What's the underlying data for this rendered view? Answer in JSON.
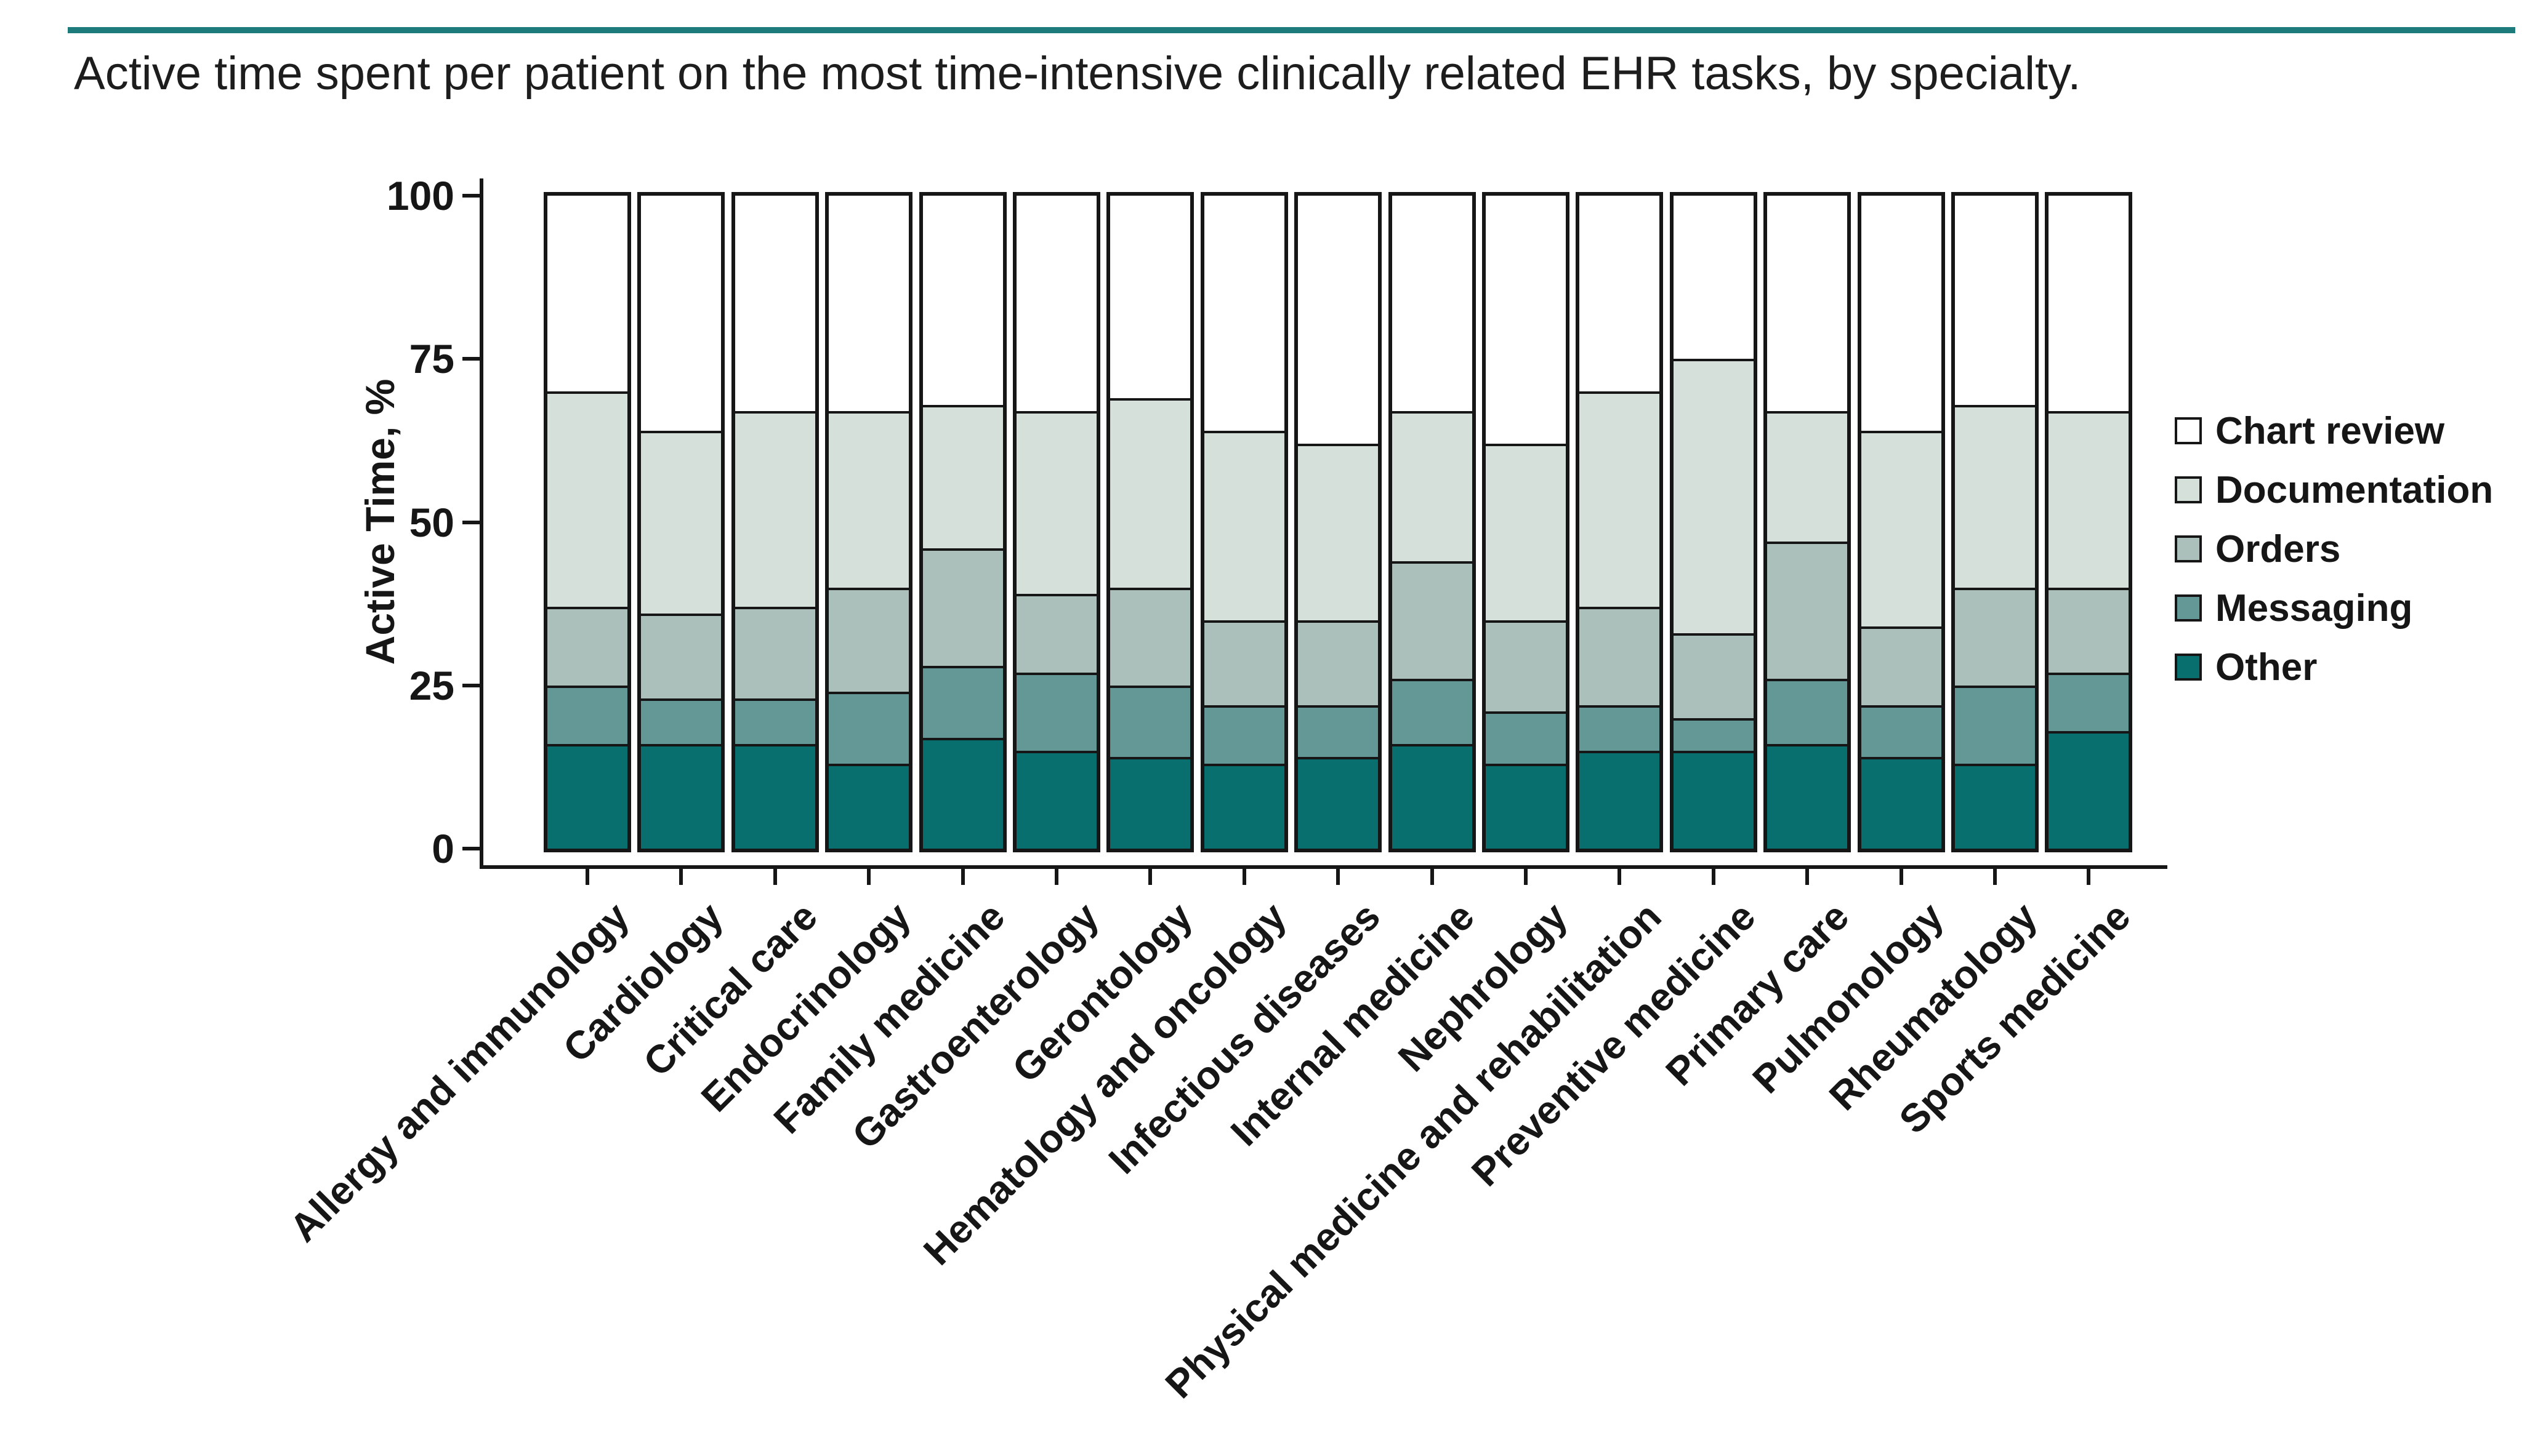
{
  "page": {
    "top_rule_color": "#1e7b7c"
  },
  "chart_data": {
    "type": "bar",
    "stacked": true,
    "title": "Active time spent per patient on the most time-intensive clinically related EHR tasks, by specialty.",
    "xlabel": "",
    "ylabel": "Active Time, %",
    "ylim": [
      0,
      100
    ],
    "yticks": [
      0,
      25,
      50,
      75,
      100
    ],
    "grid": false,
    "legend_position": "right",
    "legend_order": [
      "Chart review",
      "Documentation",
      "Orders",
      "Messaging",
      "Other"
    ],
    "categories": [
      "Allergy and immunology",
      "Cardiology",
      "Critical care",
      "Endocrinology",
      "Family medicine",
      "Gastroenterology",
      "Gerontology",
      "Hematology and oncology",
      "Infectious diseases",
      "Internal medicine",
      "Nephrology",
      "Physical medicine and rehabilitation",
      "Preventive medicine",
      "Primary care",
      "Pulmonology",
      "Rheumatology",
      "Sports medicine"
    ],
    "series": [
      {
        "name": "Other",
        "color": "#086e6e",
        "values": [
          16,
          16,
          16,
          13,
          17,
          15,
          14,
          13,
          14,
          16,
          13,
          15,
          15,
          16,
          14,
          13,
          18
        ]
      },
      {
        "name": "Messaging",
        "color": "#649896",
        "values": [
          9,
          7,
          7,
          11,
          11,
          12,
          11,
          9,
          8,
          10,
          8,
          7,
          5,
          10,
          8,
          12,
          9
        ]
      },
      {
        "name": "Orders",
        "color": "#abc0ba",
        "values": [
          12,
          13,
          14,
          16,
          18,
          12,
          15,
          13,
          13,
          18,
          14,
          15,
          13,
          21,
          12,
          15,
          13
        ]
      },
      {
        "name": "Documentation",
        "color": "#d5e0db",
        "values": [
          33,
          28,
          30,
          27,
          22,
          28,
          29,
          29,
          27,
          23,
          27,
          33,
          42,
          20,
          30,
          28,
          27
        ]
      },
      {
        "name": "Chart review",
        "color": "#ffffff",
        "values": [
          30,
          36,
          33,
          33,
          32,
          33,
          31,
          36,
          38,
          33,
          38,
          30,
          25,
          33,
          36,
          32,
          33
        ]
      }
    ]
  }
}
